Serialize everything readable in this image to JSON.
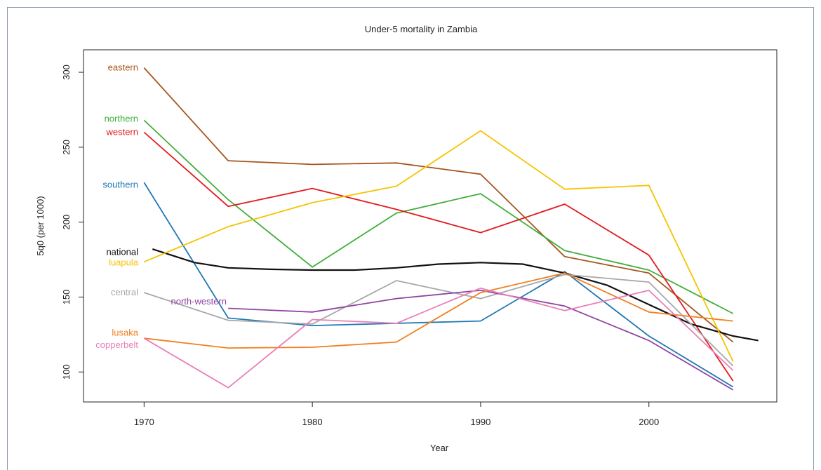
{
  "chart_data": {
    "type": "line",
    "title": "Under-5 mortality in Zambia",
    "xlabel": "Year",
    "ylabel": "5q0 (per 1000)",
    "xlim": [
      1966.4,
      2007.6
    ],
    "ylim": [
      80,
      315
    ],
    "x_ticks": [
      1970,
      1980,
      1990,
      2000
    ],
    "y_ticks": [
      100,
      150,
      200,
      250,
      300
    ],
    "grid": false,
    "legend": "inline labels at left",
    "series": [
      {
        "name": "eastern",
        "color": "#a6561f",
        "x": [
          1970,
          1975,
          1980,
          1985,
          1990,
          1995,
          2000,
          2005
        ],
        "y": [
          303,
          241,
          238.5,
          239.5,
          232,
          177,
          166,
          120
        ]
      },
      {
        "name": "northern",
        "color": "#3fae3a",
        "x": [
          1970,
          1975,
          1980,
          1985,
          1990,
          1995,
          2000,
          2005
        ],
        "y": [
          268,
          215,
          170,
          206,
          219,
          181,
          168,
          139
        ]
      },
      {
        "name": "western",
        "color": "#e31a1c",
        "x": [
          1970,
          1975,
          1980,
          1985,
          1990,
          1995,
          2000,
          2005
        ],
        "y": [
          260,
          210.5,
          222.5,
          208.5,
          193,
          212,
          178,
          94
        ]
      },
      {
        "name": "southern",
        "color": "#1f78b4",
        "x": [
          1970,
          1975,
          1980,
          1985,
          1990,
          1995,
          2000,
          2005
        ],
        "y": [
          226.5,
          136,
          131,
          132.5,
          134,
          167,
          124,
          90
        ]
      },
      {
        "name": "national",
        "color": "#111111",
        "x": [
          1970.5,
          1973,
          1975,
          1977.5,
          1980,
          1982.5,
          1985,
          1987.5,
          1990,
          1992.5,
          1995,
          1997.5,
          2000,
          2002.5,
          2005,
          2006.5
        ],
        "y": [
          182,
          173,
          169.5,
          168.5,
          168,
          168,
          169.5,
          172,
          173,
          172,
          166,
          158,
          145,
          132,
          124,
          121
        ]
      },
      {
        "name": "luapula",
        "color": "#f5c400",
        "x": [
          1970,
          1975,
          1980,
          1985,
          1990,
          1995,
          2000,
          2005
        ],
        "y": [
          173.5,
          197,
          213,
          224,
          261,
          222,
          224.5,
          107
        ]
      },
      {
        "name": "central",
        "color": "#a8a8a8",
        "x": [
          1970,
          1975,
          1980,
          1985,
          1990,
          1995,
          2000,
          2005
        ],
        "y": [
          153,
          134.5,
          132,
          161,
          149,
          165,
          160,
          104
        ]
      },
      {
        "name": "north-western",
        "color": "#8e44a3",
        "x": [
          1975,
          1980,
          1985,
          1990,
          1995,
          2000,
          2005
        ],
        "y": [
          142.5,
          140,
          149,
          154.5,
          144,
          121,
          88
        ]
      },
      {
        "name": "lusaka",
        "color": "#f07f1f",
        "x": [
          1970,
          1975,
          1980,
          1985,
          1990,
          1995,
          2000,
          2005
        ],
        "y": [
          122.5,
          116,
          116.5,
          120,
          153,
          166,
          140,
          134
        ]
      },
      {
        "name": "copperbelt",
        "color": "#ea7fb8",
        "x": [
          1970,
          1975,
          1980,
          1985,
          1990,
          1995,
          2000,
          2005
        ],
        "y": [
          122.5,
          89.5,
          135,
          132.5,
          156,
          141,
          154.5,
          101
        ]
      }
    ],
    "labels": [
      {
        "text": "eastern",
        "series": "eastern",
        "y": 303
      },
      {
        "text": "northern",
        "series": "northern",
        "y": 269
      },
      {
        "text": "western",
        "series": "western",
        "y": 260
      },
      {
        "text": "southern",
        "series": "southern",
        "y": 225
      },
      {
        "text": "national",
        "series": "national",
        "y": 180
      },
      {
        "text": "luapula",
        "series": "luapula",
        "y": 173
      },
      {
        "text": "central",
        "series": "central",
        "y": 153
      },
      {
        "text": "north-western",
        "series": "north-western",
        "y": 147
      },
      {
        "text": "lusaka",
        "series": "lusaka",
        "y": 126
      },
      {
        "text": "copperbelt",
        "series": "copperbelt",
        "y": 118
      }
    ]
  }
}
